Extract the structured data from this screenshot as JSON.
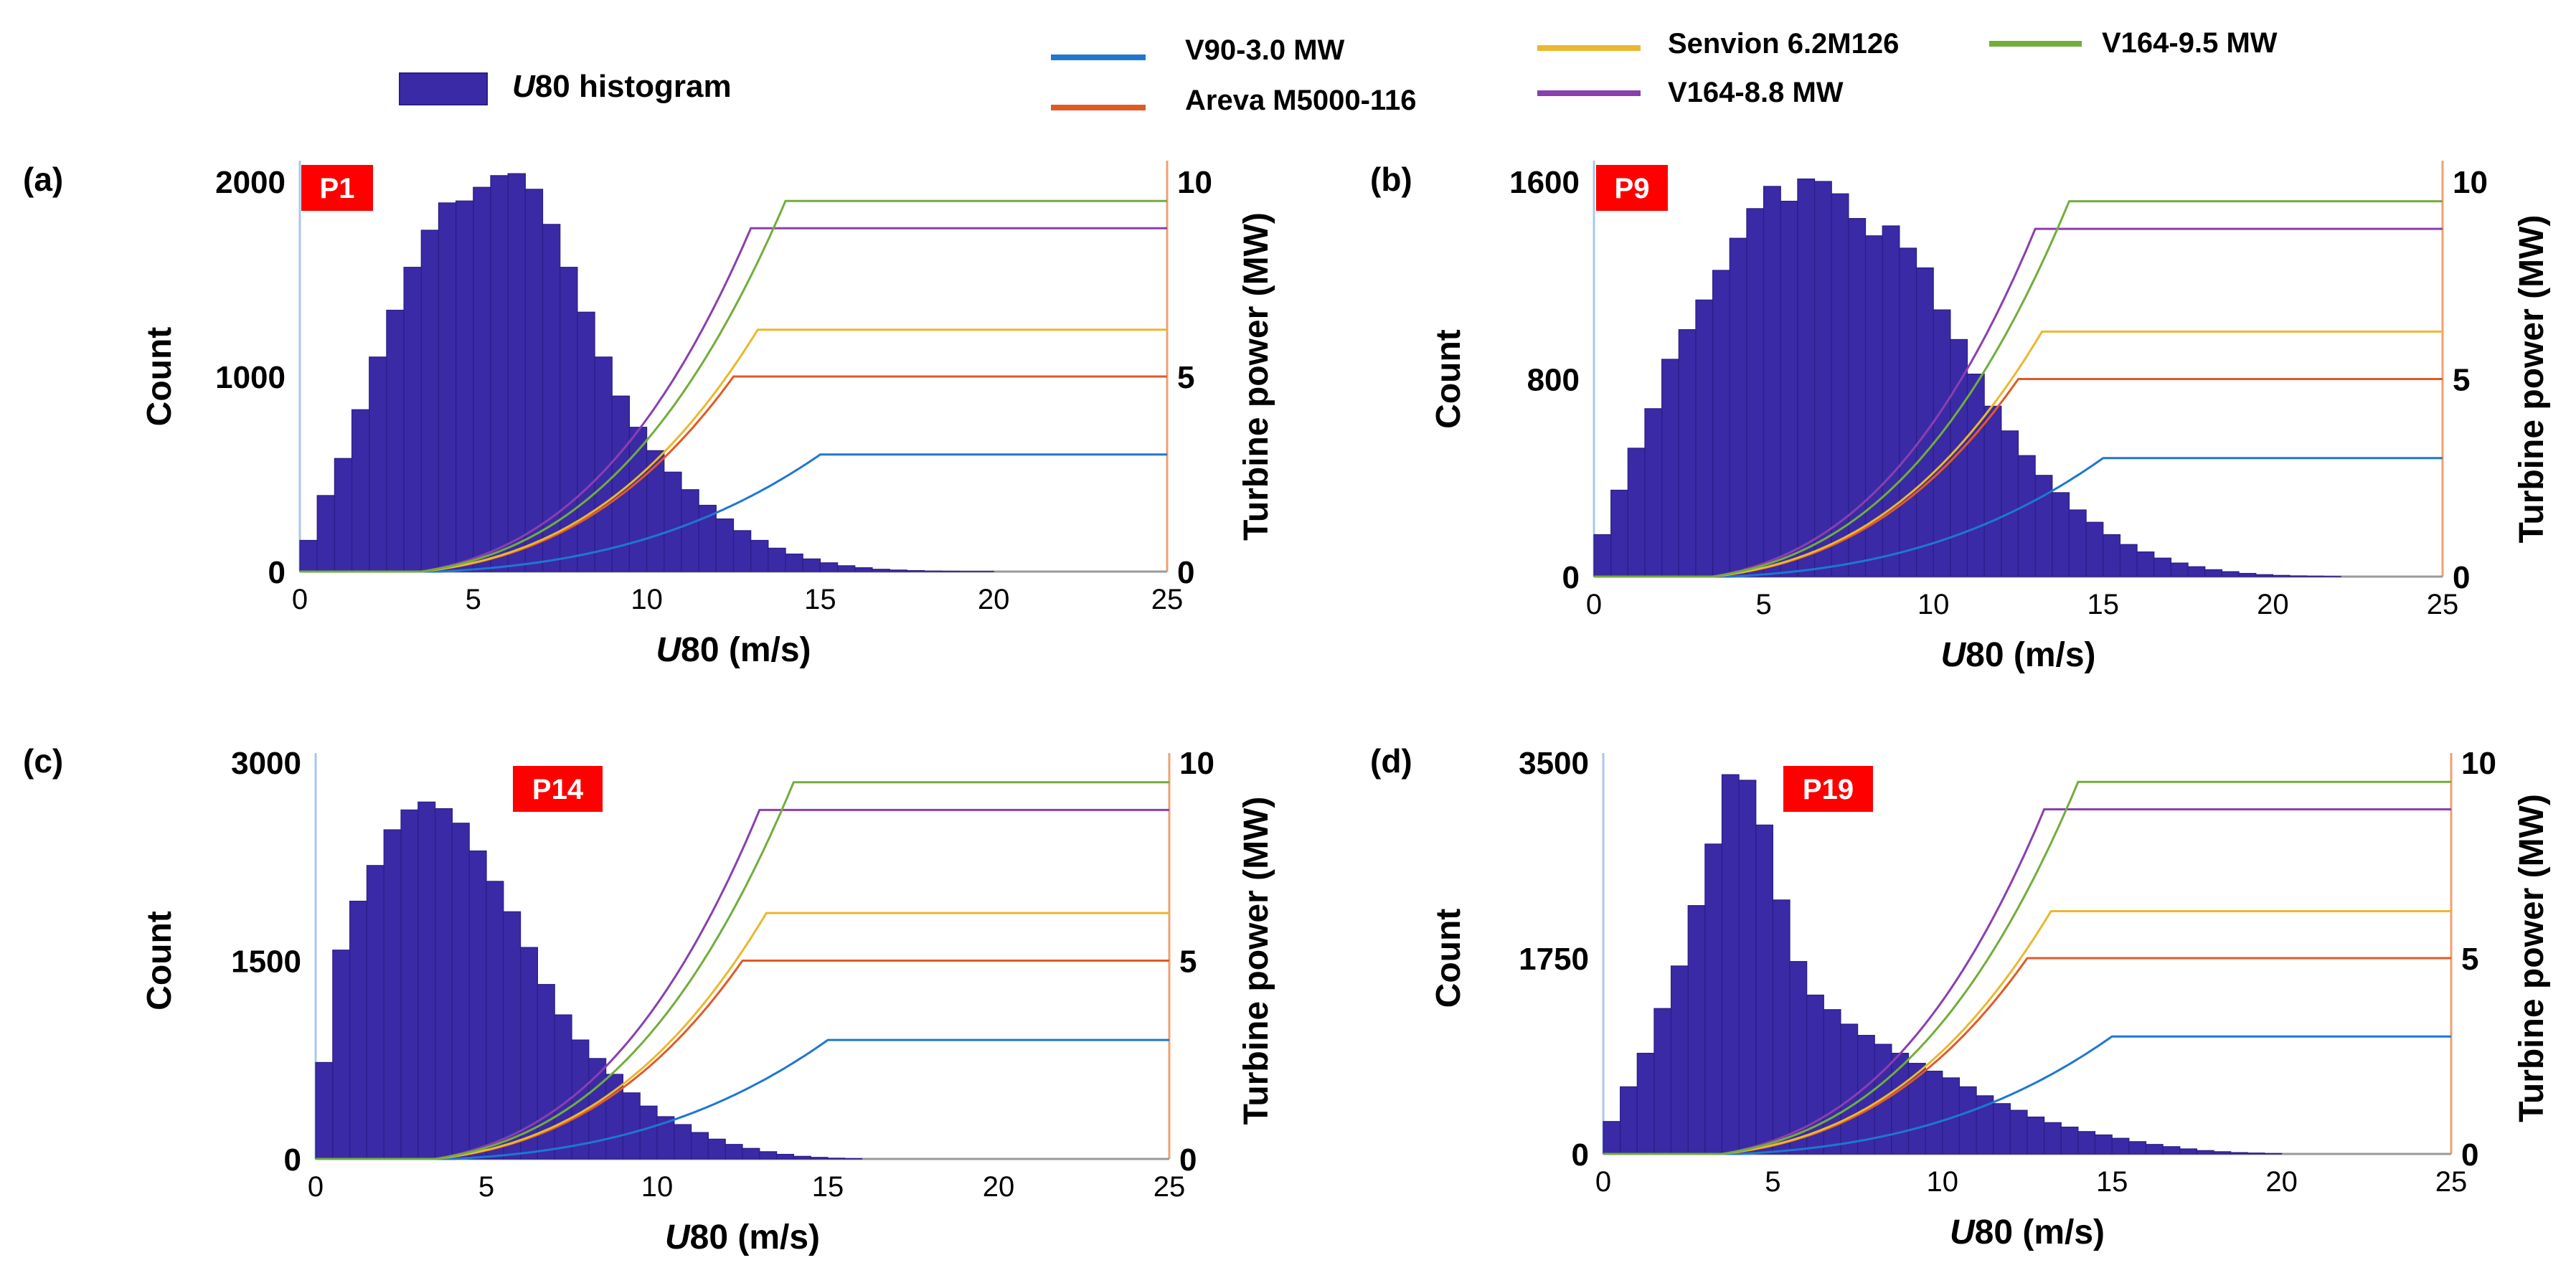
{
  "legend": {
    "histogram": {
      "label_italic": "U",
      "label_rest": "80 histogram",
      "color": "#3a2aa6"
    },
    "turbines": [
      {
        "name": "V90-3.0 MW",
        "color": "#1f77d0"
      },
      {
        "name": "Areva M5000-116",
        "color": "#e05a26"
      },
      {
        "name": "Senvion 6.2M126",
        "color": "#eab830"
      },
      {
        "name": "V164-8.8 MW",
        "color": "#8a3fae"
      },
      {
        "name": "V164-9.5 MW",
        "color": "#72ad3c"
      }
    ]
  },
  "chart_data": [
    {
      "type": "bar",
      "panel": "(a)",
      "site": "P1",
      "xlabel_italic": "U",
      "xlabel_rest": "80 (m/s)",
      "ylabel": "Count",
      "y2label": "Turbine power (MW)",
      "xlim": [
        0,
        25
      ],
      "ylim": [
        0,
        2000
      ],
      "y2lim": [
        0,
        10
      ],
      "xticks": [
        "0",
        "5",
        "10",
        "15",
        "20",
        "25"
      ],
      "yticks": [
        "0",
        "1000",
        "2000"
      ],
      "y2ticks": [
        "0",
        "5",
        "10"
      ],
      "bin_width": 0.5,
      "counts": [
        160,
        390,
        580,
        830,
        1100,
        1340,
        1560,
        1750,
        1890,
        1900,
        1970,
        2030,
        2040,
        1960,
        1780,
        1560,
        1330,
        1100,
        900,
        740,
        620,
        510,
        420,
        340,
        270,
        210,
        160,
        120,
        90,
        65,
        45,
        30,
        20,
        12,
        8,
        5,
        3,
        2,
        1,
        1
      ]
    },
    {
      "type": "bar",
      "panel": "(b)",
      "site": "P9",
      "xlabel_italic": "U",
      "xlabel_rest": "80 (m/s)",
      "ylabel": "Count",
      "y2label": "Turbine power (MW)",
      "xlim": [
        0,
        25
      ],
      "ylim": [
        0,
        1600
      ],
      "y2lim": [
        0,
        10
      ],
      "xticks": [
        "0",
        "5",
        "10",
        "15",
        "20",
        "25"
      ],
      "yticks": [
        "0",
        "800",
        "1600"
      ],
      "y2ticks": [
        "0",
        "5",
        "10"
      ],
      "bin_width": 0.5,
      "counts": [
        170,
        350,
        520,
        680,
        880,
        1000,
        1120,
        1240,
        1370,
        1490,
        1580,
        1520,
        1610,
        1600,
        1550,
        1450,
        1380,
        1420,
        1330,
        1250,
        1080,
        960,
        820,
        690,
        590,
        490,
        410,
        340,
        270,
        220,
        170,
        130,
        100,
        75,
        55,
        40,
        28,
        20,
        13,
        8,
        5,
        3,
        2,
        1
      ]
    },
    {
      "type": "bar",
      "panel": "(c)",
      "site": "P14",
      "xlabel_italic": "U",
      "xlabel_rest": "80 (m/s)",
      "ylabel": "Count",
      "y2label": "Turbine power (MW)",
      "xlim": [
        0,
        25
      ],
      "ylim": [
        0,
        3000
      ],
      "y2lim": [
        0,
        10
      ],
      "xticks": [
        "0",
        "5",
        "10",
        "15",
        "20",
        "25"
      ],
      "yticks": [
        "0",
        "1500",
        "3000"
      ],
      "y2ticks": [
        "0",
        "5",
        "10"
      ],
      "bin_width": 0.5,
      "counts": [
        730,
        1580,
        1950,
        2220,
        2490,
        2640,
        2700,
        2650,
        2540,
        2330,
        2100,
        1870,
        1600,
        1320,
        1090,
        900,
        760,
        640,
        500,
        400,
        320,
        260,
        200,
        150,
        110,
        80,
        55,
        35,
        20,
        12,
        6,
        3
      ]
    },
    {
      "type": "bar",
      "panel": "(d)",
      "site": "P19",
      "xlabel_italic": "U",
      "xlabel_rest": "80 (m/s)",
      "ylabel": "Count",
      "y2label": "Turbine power (MW)",
      "xlim": [
        0,
        25
      ],
      "ylim": [
        0,
        3500
      ],
      "y2lim": [
        0,
        10
      ],
      "xticks": [
        "0",
        "5",
        "10",
        "15",
        "20",
        "25"
      ],
      "yticks": [
        "0",
        "1750",
        "3500"
      ],
      "y2ticks": [
        "0",
        "5",
        "10"
      ],
      "bin_width": 0.5,
      "counts": [
        290,
        600,
        900,
        1300,
        1680,
        2220,
        2770,
        3390,
        3340,
        2940,
        2270,
        1720,
        1420,
        1290,
        1160,
        1060,
        980,
        900,
        810,
        740,
        680,
        600,
        520,
        450,
        390,
        330,
        280,
        240,
        200,
        170,
        140,
        110,
        85,
        65,
        45,
        30,
        20,
        12,
        8,
        4
      ]
    }
  ]
}
